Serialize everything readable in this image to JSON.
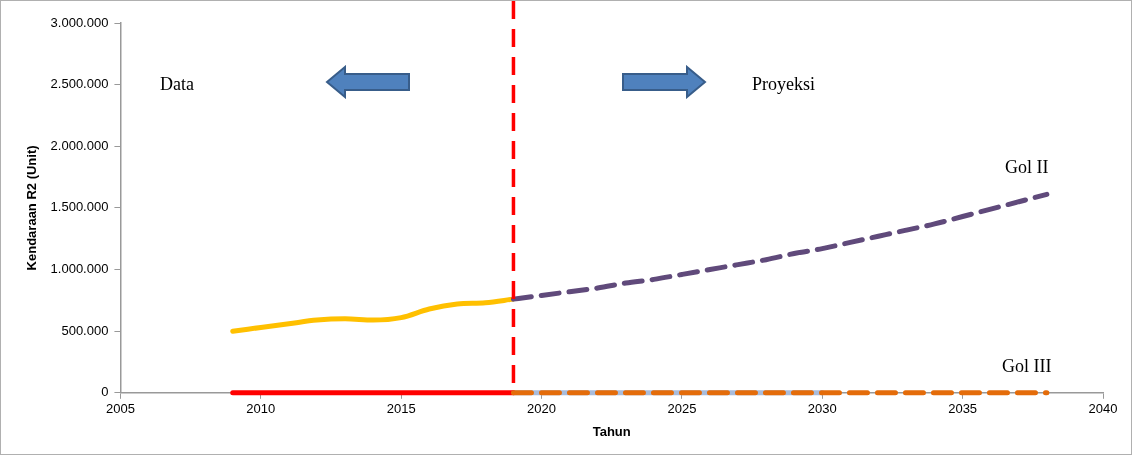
{
  "chart_data": {
    "type": "line",
    "xlabel": "Tahun",
    "ylabel": "Kendaraan R2 (Unit)",
    "xlim": [
      2005,
      2040
    ],
    "xticks": [
      2005,
      2010,
      2015,
      2020,
      2025,
      2030,
      2035,
      2040
    ],
    "ylim": [
      0,
      3000000
    ],
    "yticks": [
      {
        "value": 0,
        "label": "0"
      },
      {
        "value": 500000,
        "label": "500.000"
      },
      {
        "value": 1000000,
        "label": "1.000.000"
      },
      {
        "value": 1500000,
        "label": "1.500.000"
      },
      {
        "value": 2000000,
        "label": "2.000.000"
      },
      {
        "value": 2500000,
        "label": "2.500.000"
      },
      {
        "value": 3000000,
        "label": "3.000.000"
      }
    ],
    "grid": false,
    "legend": false,
    "marker": "none",
    "annotations": [
      "Data",
      "Proyeksi"
    ],
    "ref_lines": [
      {
        "axis": "x",
        "value": 2019,
        "color": "#ff0000",
        "line_style": "dashed"
      }
    ],
    "series": [
      {
        "color": "#ffc000",
        "line_style": "solid",
        "x": [
          2009,
          2010,
          2011,
          2012,
          2013,
          2014,
          2015,
          2016,
          2017,
          2018,
          2019
        ],
        "values": [
          500000,
          530000,
          560000,
          590000,
          600000,
          590000,
          610000,
          680000,
          720000,
          730000,
          760000
        ]
      },
      {
        "name": "Gol II",
        "color": "#604a7b",
        "line_style": "dashed",
        "x": [
          2019,
          2020,
          2021,
          2022,
          2023,
          2024,
          2025,
          2026,
          2027,
          2028,
          2029,
          2030,
          2031,
          2032,
          2033,
          2034,
          2035,
          2036,
          2037,
          2038
        ],
        "values": [
          760000,
          790000,
          820000,
          850000,
          890000,
          920000,
          960000,
          1000000,
          1040000,
          1080000,
          1130000,
          1170000,
          1220000,
          1270000,
          1320000,
          1370000,
          1430000,
          1490000,
          1550000,
          1610000
        ]
      },
      {
        "color": "#a9bcdb",
        "line_style": "solid",
        "x": [
          2019,
          2020,
          2021,
          2022,
          2023,
          2024,
          2025,
          2026,
          2027,
          2028,
          2029,
          2030
        ],
        "values": [
          0,
          0,
          0,
          0,
          0,
          0,
          0,
          0,
          0,
          0,
          0,
          0
        ]
      },
      {
        "color": "#ff0000",
        "line_style": "solid",
        "x": [
          2009,
          2010,
          2011,
          2012,
          2013,
          2014,
          2015,
          2016,
          2017,
          2018,
          2019
        ],
        "values": [
          0,
          0,
          0,
          0,
          0,
          0,
          0,
          0,
          0,
          0,
          0
        ]
      },
      {
        "name": "Gol III",
        "color": "#e46c0a",
        "line_style": "dashed",
        "x": [
          2019,
          2020,
          2021,
          2022,
          2023,
          2024,
          2025,
          2026,
          2027,
          2028,
          2029,
          2030,
          2031,
          2032,
          2033,
          2034,
          2035,
          2036,
          2037,
          2038
        ],
        "values": [
          0,
          0,
          0,
          0,
          0,
          0,
          0,
          0,
          0,
          0,
          0,
          0,
          0,
          0,
          0,
          0,
          0,
          0,
          0,
          0
        ]
      }
    ]
  }
}
